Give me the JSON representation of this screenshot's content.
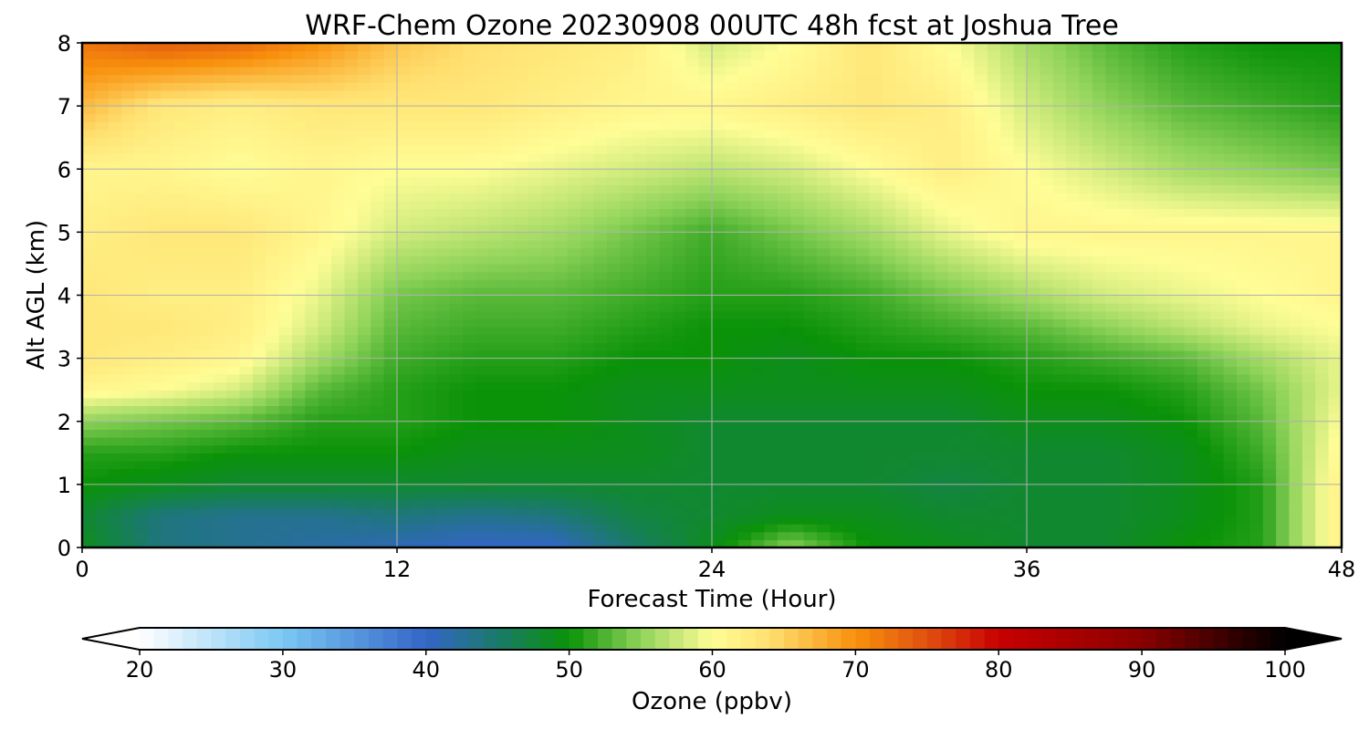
{
  "chart_data": {
    "type": "heatmap",
    "title": "WRF-Chem Ozone  20230908 00UTC 48h fcst at Joshua Tree",
    "xlabel": "Forecast Time (Hour)",
    "ylabel": "Alt AGL (km)",
    "xlim": [
      0,
      48
    ],
    "ylim": [
      0,
      8
    ],
    "x_ticks": [
      0,
      12,
      24,
      36,
      48
    ],
    "y_ticks": [
      0,
      1,
      2,
      3,
      4,
      5,
      6,
      7,
      8
    ],
    "grid": true,
    "x": [
      0,
      3,
      6,
      9,
      12,
      15,
      18,
      21,
      24,
      27,
      30,
      33,
      36,
      39,
      42,
      45,
      48
    ],
    "y": [
      0,
      0.5,
      1,
      1.5,
      2,
      2.5,
      3,
      3.5,
      4,
      5,
      6,
      7,
      8
    ],
    "z": [
      [
        49,
        44,
        43,
        42,
        41,
        40,
        40,
        45,
        49,
        55,
        50,
        49,
        48,
        48,
        50,
        51,
        62
      ],
      [
        48,
        44,
        43,
        43,
        44,
        43,
        44,
        47,
        48,
        49,
        49,
        48,
        48,
        48,
        49,
        51,
        62
      ],
      [
        50,
        49,
        48,
        48,
        48,
        48,
        48,
        48,
        48,
        48,
        48,
        47,
        48,
        48,
        49,
        51,
        62
      ],
      [
        51,
        51,
        50,
        50,
        50,
        49,
        49,
        49,
        48,
        48,
        48,
        48,
        48,
        48,
        49,
        52,
        61
      ],
      [
        55,
        54,
        53,
        51,
        51,
        50,
        50,
        49,
        48,
        48,
        48,
        48,
        49,
        49,
        50,
        53,
        60
      ],
      [
        61,
        60,
        58,
        53,
        51,
        50,
        50,
        49,
        49,
        49,
        49,
        49,
        50,
        50,
        51,
        54,
        59
      ],
      [
        63,
        62,
        61,
        56,
        52,
        51,
        51,
        50,
        50,
        49,
        50,
        50,
        51,
        52,
        53,
        56,
        59
      ],
      [
        63,
        63,
        62,
        58,
        53,
        52,
        52,
        51,
        50,
        50,
        51,
        52,
        53,
        55,
        57,
        59,
        60
      ],
      [
        63,
        62,
        62,
        59,
        54,
        53,
        53,
        52,
        51,
        51,
        52,
        54,
        56,
        58,
        59,
        60,
        61
      ],
      [
        62,
        63,
        63,
        61,
        58,
        57,
        56,
        54,
        52,
        54,
        56,
        59,
        61,
        61,
        61,
        61,
        61
      ],
      [
        61,
        61,
        60,
        61,
        60,
        60,
        59,
        58,
        57,
        58,
        60,
        62,
        60,
        58,
        56,
        55,
        54
      ],
      [
        67,
        63,
        62,
        63,
        63,
        63,
        62,
        61,
        61,
        62,
        63,
        62,
        58,
        55,
        53,
        52,
        51
      ],
      [
        72,
        74,
        73,
        70,
        66,
        64,
        63,
        62,
        58,
        60,
        63,
        60,
        56,
        53,
        51,
        50,
        50
      ]
    ],
    "colorbar": {
      "label": "Ozone  (ppbv)",
      "min": 20,
      "max": 100,
      "ticks": [
        20,
        30,
        40,
        50,
        60,
        70,
        80,
        90,
        100
      ],
      "extend": "both"
    },
    "colormap": [
      {
        "v": 20,
        "c": "#ffffff"
      },
      {
        "v": 30,
        "c": "#7ac8f3"
      },
      {
        "v": 40,
        "c": "#3465c8"
      },
      {
        "v": 45,
        "c": "#1a7a6a"
      },
      {
        "v": 50,
        "c": "#0a9208"
      },
      {
        "v": 55,
        "c": "#8fd35a"
      },
      {
        "v": 60,
        "c": "#fffd96"
      },
      {
        "v": 64,
        "c": "#ffe070"
      },
      {
        "v": 70,
        "c": "#f8900c"
      },
      {
        "v": 75,
        "c": "#e05010"
      },
      {
        "v": 80,
        "c": "#c80000"
      },
      {
        "v": 90,
        "c": "#8a0000"
      },
      {
        "v": 100,
        "c": "#000000"
      }
    ]
  }
}
